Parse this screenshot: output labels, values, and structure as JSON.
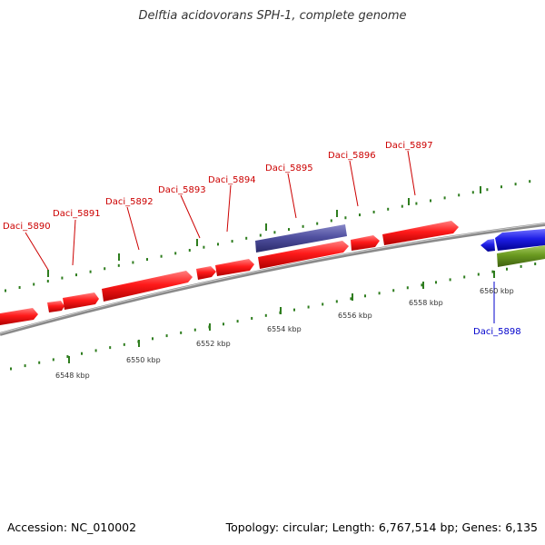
{
  "title": "Delftia acidovorans SPH-1, complete genome",
  "footer": {
    "accession": "Accession: NC_010002",
    "info": "Topology: circular; Length: 6,767,514 bp; Genes: 6,135"
  },
  "colors": {
    "backbone": "#8a8a8a",
    "tick": "#2e7d1e",
    "gene_forward": "#ff1a1a",
    "gene_reverse": "#1e1ee6",
    "gene_other": "#5050a0",
    "gene_green": "#6a9a20",
    "label_forward": "#cc0000",
    "label_reverse": "#0000cc",
    "scale_text": "#333333"
  },
  "gene_labels": [
    {
      "name": "Daci_5890",
      "strand": "forward"
    },
    {
      "name": "Daci_5891",
      "strand": "forward"
    },
    {
      "name": "Daci_5892",
      "strand": "forward"
    },
    {
      "name": "Daci_5893",
      "strand": "forward"
    },
    {
      "name": "Daci_5894",
      "strand": "forward"
    },
    {
      "name": "Daci_5895",
      "strand": "forward"
    },
    {
      "name": "Daci_5896",
      "strand": "forward"
    },
    {
      "name": "Daci_5897",
      "strand": "forward"
    },
    {
      "name": "Daci_5898",
      "strand": "reverse"
    }
  ],
  "scale_labels": [
    "6548 kbp",
    "6550 kbp",
    "6552 kbp",
    "6554 kbp",
    "6556 kbp",
    "6558 kbp",
    "6560 kbp"
  ]
}
